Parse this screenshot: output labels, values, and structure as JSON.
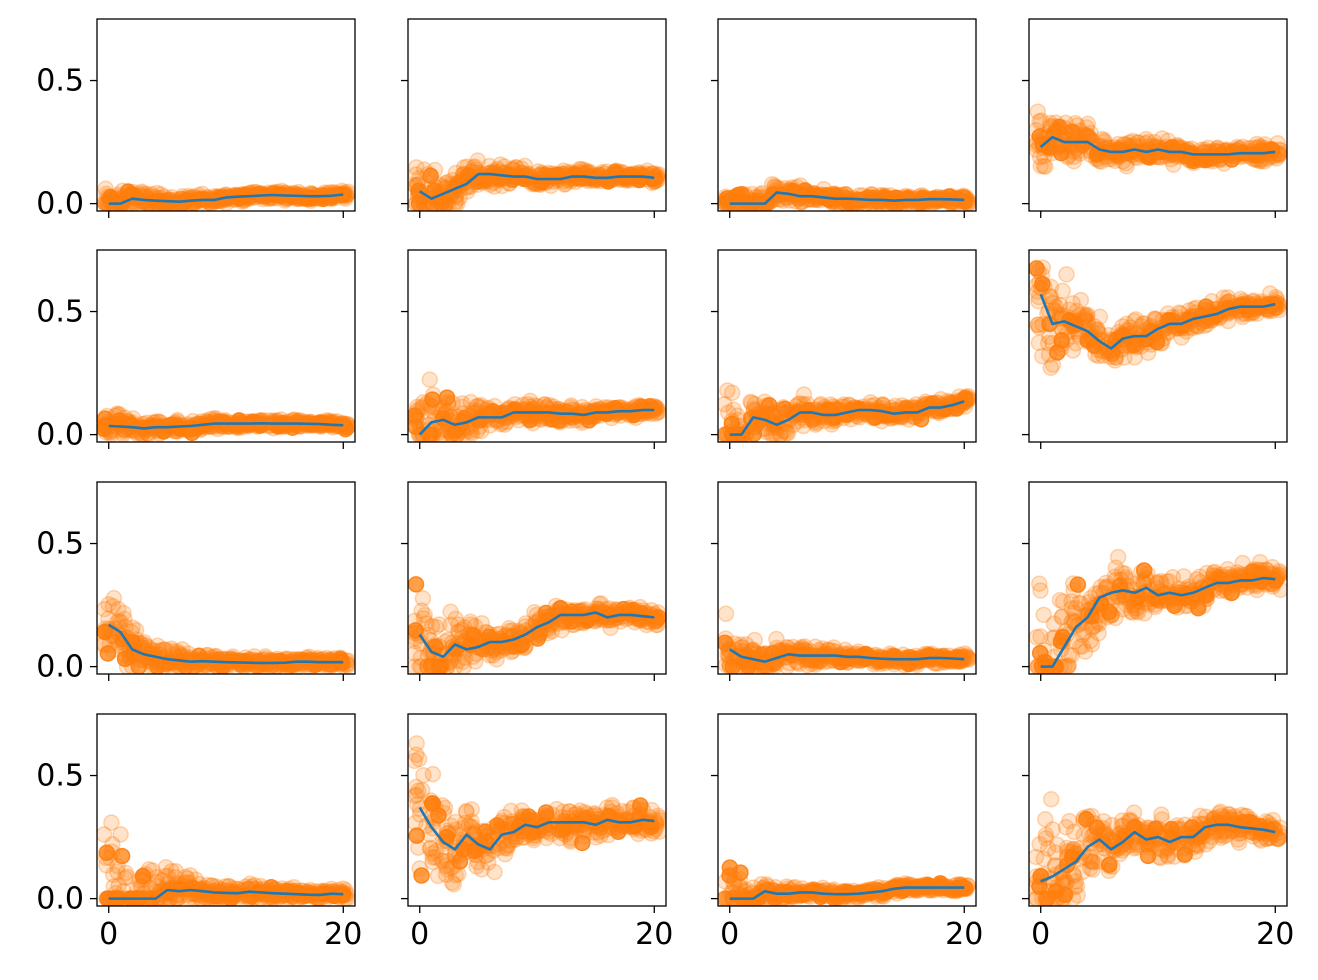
{
  "chart_data": {
    "type": "scatter",
    "layout": {
      "rows": 4,
      "cols": 4,
      "sharex": true,
      "sharey": true
    },
    "xlim": [
      -1,
      21
    ],
    "ylim": [
      -0.03,
      0.75
    ],
    "xticks": [
      0,
      20
    ],
    "xtick_labels": [
      "0",
      "20"
    ],
    "yticks": [
      0.0,
      0.5
    ],
    "ytick_labels": [
      "0.0",
      "0.5"
    ],
    "scatter_color": "#ff7f0e",
    "line_color": "#1f77b4",
    "x": [
      0,
      1,
      2,
      3,
      4,
      5,
      6,
      7,
      8,
      9,
      10,
      11,
      12,
      13,
      14,
      15,
      16,
      17,
      18,
      19,
      20
    ],
    "panels": [
      {
        "line": [
          0.0,
          0.0,
          0.02,
          0.015,
          0.012,
          0.01,
          0.008,
          0.012,
          0.015,
          0.015,
          0.025,
          0.028,
          0.03,
          0.033,
          0.035,
          0.033,
          0.032,
          0.03,
          0.03,
          0.032,
          0.037
        ],
        "spread": [
          0.09,
          0.07,
          0.06,
          0.05,
          0.045,
          0.04,
          0.035,
          0.03,
          0.03,
          0.03,
          0.028,
          0.027,
          0.026,
          0.025,
          0.025,
          0.024,
          0.024,
          0.023,
          0.023,
          0.022,
          0.022
        ]
      },
      {
        "line": [
          0.05,
          0.02,
          0.04,
          0.06,
          0.08,
          0.12,
          0.12,
          0.115,
          0.11,
          0.11,
          0.1,
          0.1,
          0.1,
          0.11,
          0.11,
          0.105,
          0.105,
          0.11,
          0.11,
          0.11,
          0.105
        ],
        "spread": [
          0.2,
          0.15,
          0.12,
          0.1,
          0.09,
          0.08,
          0.07,
          0.06,
          0.055,
          0.05,
          0.05,
          0.045,
          0.045,
          0.04,
          0.04,
          0.04,
          0.038,
          0.036,
          0.035,
          0.035,
          0.034
        ]
      },
      {
        "line": [
          0.0,
          0.0,
          0.0,
          0.0,
          0.045,
          0.04,
          0.03,
          0.03,
          0.025,
          0.02,
          0.02,
          0.018,
          0.015,
          0.015,
          0.012,
          0.015,
          0.015,
          0.018,
          0.018,
          0.017,
          0.015
        ],
        "spread": [
          0.08,
          0.07,
          0.06,
          0.06,
          0.06,
          0.05,
          0.05,
          0.045,
          0.04,
          0.04,
          0.035,
          0.035,
          0.03,
          0.03,
          0.03,
          0.03,
          0.03,
          0.028,
          0.028,
          0.028,
          0.027
        ]
      },
      {
        "line": [
          0.23,
          0.27,
          0.25,
          0.25,
          0.25,
          0.22,
          0.21,
          0.21,
          0.22,
          0.21,
          0.22,
          0.21,
          0.21,
          0.2,
          0.2,
          0.2,
          0.2,
          0.205,
          0.205,
          0.205,
          0.21
        ],
        "spread": [
          0.2,
          0.16,
          0.14,
          0.12,
          0.1,
          0.09,
          0.08,
          0.075,
          0.07,
          0.065,
          0.06,
          0.06,
          0.055,
          0.055,
          0.05,
          0.05,
          0.05,
          0.048,
          0.046,
          0.045,
          0.045
        ]
      },
      {
        "line": [
          0.035,
          0.033,
          0.03,
          0.025,
          0.03,
          0.03,
          0.033,
          0.035,
          0.04,
          0.045,
          0.045,
          0.045,
          0.045,
          0.046,
          0.045,
          0.045,
          0.045,
          0.044,
          0.043,
          0.04,
          0.038
        ],
        "spread": [
          0.08,
          0.07,
          0.06,
          0.05,
          0.045,
          0.04,
          0.035,
          0.032,
          0.03,
          0.03,
          0.028,
          0.027,
          0.026,
          0.025,
          0.025,
          0.024,
          0.024,
          0.023,
          0.023,
          0.022,
          0.022
        ]
      },
      {
        "line": [
          0.0,
          0.05,
          0.06,
          0.04,
          0.05,
          0.07,
          0.07,
          0.07,
          0.09,
          0.09,
          0.09,
          0.09,
          0.085,
          0.085,
          0.08,
          0.09,
          0.09,
          0.095,
          0.095,
          0.1,
          0.1
        ],
        "spread": [
          0.25,
          0.2,
          0.15,
          0.12,
          0.1,
          0.09,
          0.08,
          0.07,
          0.065,
          0.06,
          0.055,
          0.05,
          0.05,
          0.045,
          0.045,
          0.04,
          0.04,
          0.04,
          0.038,
          0.036,
          0.035
        ]
      },
      {
        "line": [
          0.0,
          0.0,
          0.07,
          0.06,
          0.04,
          0.06,
          0.09,
          0.09,
          0.08,
          0.08,
          0.09,
          0.1,
          0.1,
          0.095,
          0.085,
          0.09,
          0.09,
          0.11,
          0.11,
          0.12,
          0.135
        ],
        "spread": [
          0.28,
          0.2,
          0.15,
          0.13,
          0.11,
          0.1,
          0.09,
          0.08,
          0.07,
          0.065,
          0.06,
          0.055,
          0.05,
          0.05,
          0.045,
          0.045,
          0.04,
          0.04,
          0.04,
          0.038,
          0.036
        ]
      },
      {
        "line": [
          0.57,
          0.45,
          0.46,
          0.44,
          0.42,
          0.38,
          0.35,
          0.39,
          0.4,
          0.4,
          0.43,
          0.45,
          0.45,
          0.47,
          0.48,
          0.49,
          0.51,
          0.52,
          0.52,
          0.52,
          0.53
        ],
        "spread": [
          0.35,
          0.3,
          0.22,
          0.18,
          0.15,
          0.13,
          0.12,
          0.11,
          0.1,
          0.09,
          0.085,
          0.08,
          0.075,
          0.07,
          0.065,
          0.06,
          0.06,
          0.055,
          0.055,
          0.05,
          0.05
        ]
      },
      {
        "line": [
          0.17,
          0.14,
          0.07,
          0.05,
          0.04,
          0.03,
          0.025,
          0.02,
          0.022,
          0.02,
          0.018,
          0.017,
          0.016,
          0.015,
          0.015,
          0.016,
          0.02,
          0.02,
          0.018,
          0.018,
          0.018
        ],
        "spread": [
          0.17,
          0.15,
          0.12,
          0.1,
          0.08,
          0.07,
          0.06,
          0.05,
          0.045,
          0.04,
          0.038,
          0.035,
          0.032,
          0.03,
          0.03,
          0.03,
          0.028,
          0.028,
          0.027,
          0.027,
          0.026
        ]
      },
      {
        "line": [
          0.13,
          0.06,
          0.04,
          0.09,
          0.07,
          0.08,
          0.1,
          0.1,
          0.11,
          0.13,
          0.16,
          0.18,
          0.21,
          0.21,
          0.21,
          0.22,
          0.2,
          0.21,
          0.21,
          0.205,
          0.2
        ],
        "spread": [
          0.3,
          0.25,
          0.2,
          0.16,
          0.14,
          0.12,
          0.11,
          0.1,
          0.095,
          0.09,
          0.085,
          0.08,
          0.075,
          0.07,
          0.07,
          0.065,
          0.06,
          0.06,
          0.058,
          0.055,
          0.055
        ]
      },
      {
        "line": [
          0.07,
          0.04,
          0.03,
          0.02,
          0.035,
          0.05,
          0.045,
          0.045,
          0.045,
          0.045,
          0.04,
          0.04,
          0.035,
          0.032,
          0.03,
          0.03,
          0.03,
          0.035,
          0.035,
          0.033,
          0.03
        ],
        "spread": [
          0.15,
          0.12,
          0.1,
          0.09,
          0.08,
          0.07,
          0.06,
          0.055,
          0.05,
          0.045,
          0.04,
          0.04,
          0.038,
          0.035,
          0.033,
          0.032,
          0.03,
          0.03,
          0.03,
          0.028,
          0.028
        ]
      },
      {
        "line": [
          0.0,
          0.0,
          0.08,
          0.16,
          0.2,
          0.28,
          0.3,
          0.31,
          0.3,
          0.32,
          0.29,
          0.3,
          0.29,
          0.3,
          0.32,
          0.34,
          0.34,
          0.35,
          0.35,
          0.36,
          0.355
        ],
        "spread": [
          0.6,
          0.4,
          0.3,
          0.25,
          0.2,
          0.18,
          0.16,
          0.15,
          0.14,
          0.13,
          0.12,
          0.11,
          0.1,
          0.1,
          0.09,
          0.09,
          0.085,
          0.08,
          0.08,
          0.075,
          0.075
        ]
      },
      {
        "line": [
          0.0,
          0.0,
          0.0,
          0.0,
          0.0,
          0.035,
          0.03,
          0.035,
          0.03,
          0.025,
          0.023,
          0.022,
          0.028,
          0.025,
          0.022,
          0.02,
          0.018,
          0.016,
          0.015,
          0.02,
          0.018
        ],
        "spread": [
          0.5,
          0.35,
          0.25,
          0.18,
          0.15,
          0.12,
          0.1,
          0.08,
          0.07,
          0.06,
          0.055,
          0.05,
          0.045,
          0.04,
          0.04,
          0.038,
          0.035,
          0.033,
          0.032,
          0.03,
          0.03
        ]
      },
      {
        "line": [
          0.37,
          0.29,
          0.23,
          0.2,
          0.26,
          0.22,
          0.2,
          0.26,
          0.27,
          0.3,
          0.29,
          0.31,
          0.31,
          0.31,
          0.31,
          0.3,
          0.32,
          0.31,
          0.31,
          0.32,
          0.315
        ],
        "spread": [
          0.35,
          0.3,
          0.25,
          0.2,
          0.18,
          0.16,
          0.15,
          0.14,
          0.13,
          0.12,
          0.11,
          0.1,
          0.1,
          0.095,
          0.09,
          0.085,
          0.08,
          0.08,
          0.075,
          0.075,
          0.07
        ]
      },
      {
        "line": [
          0.0,
          0.0,
          0.0,
          0.03,
          0.02,
          0.02,
          0.025,
          0.025,
          0.02,
          0.018,
          0.018,
          0.02,
          0.025,
          0.03,
          0.04,
          0.045,
          0.045,
          0.045,
          0.045,
          0.045,
          0.045
        ],
        "spread": [
          0.2,
          0.12,
          0.08,
          0.06,
          0.05,
          0.045,
          0.04,
          0.035,
          0.032,
          0.03,
          0.03,
          0.028,
          0.027,
          0.026,
          0.025,
          0.025,
          0.024,
          0.024,
          0.023,
          0.023,
          0.022
        ]
      },
      {
        "line": [
          0.07,
          0.09,
          0.12,
          0.15,
          0.21,
          0.24,
          0.2,
          0.23,
          0.27,
          0.24,
          0.25,
          0.23,
          0.25,
          0.25,
          0.29,
          0.3,
          0.3,
          0.29,
          0.285,
          0.28,
          0.27
        ],
        "spread": [
          0.4,
          0.35,
          0.3,
          0.25,
          0.2,
          0.18,
          0.16,
          0.14,
          0.13,
          0.12,
          0.11,
          0.1,
          0.1,
          0.095,
          0.09,
          0.085,
          0.08,
          0.08,
          0.075,
          0.075,
          0.07
        ]
      }
    ]
  }
}
